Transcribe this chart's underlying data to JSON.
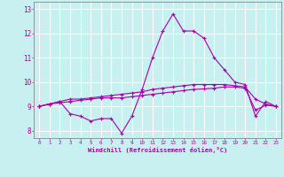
{
  "x": [
    0,
    1,
    2,
    3,
    4,
    5,
    6,
    7,
    8,
    9,
    10,
    11,
    12,
    13,
    14,
    15,
    16,
    17,
    18,
    19,
    20,
    21,
    22,
    23
  ],
  "temp": [
    9.0,
    9.1,
    9.2,
    9.3,
    9.3,
    9.35,
    9.4,
    9.45,
    9.5,
    9.55,
    9.6,
    9.7,
    9.75,
    9.8,
    9.85,
    9.9,
    9.9,
    9.9,
    9.9,
    9.85,
    9.8,
    9.3,
    9.1,
    9.0
  ],
  "windchill": [
    9.0,
    9.1,
    9.2,
    8.7,
    8.6,
    8.4,
    8.5,
    8.5,
    7.9,
    8.6,
    9.7,
    11.0,
    12.1,
    12.8,
    12.1,
    12.1,
    11.8,
    11.0,
    10.5,
    10.0,
    9.9,
    8.6,
    9.2,
    9.0
  ],
  "feels": [
    9.0,
    9.1,
    9.15,
    9.2,
    9.25,
    9.3,
    9.35,
    9.35,
    9.35,
    9.4,
    9.45,
    9.5,
    9.55,
    9.6,
    9.65,
    9.7,
    9.72,
    9.75,
    9.8,
    9.8,
    9.75,
    8.85,
    9.05,
    9.0
  ],
  "line_color": "#aa00aa",
  "bg_color": "#c8f0f0",
  "grid_color": "#ffffff",
  "xlabel": "Windchill (Refroidissement éolien,°C)",
  "ylabel_ticks": [
    8,
    9,
    10,
    11,
    12,
    13
  ],
  "xlim": [
    -0.5,
    23.5
  ],
  "ylim": [
    7.7,
    13.3
  ]
}
